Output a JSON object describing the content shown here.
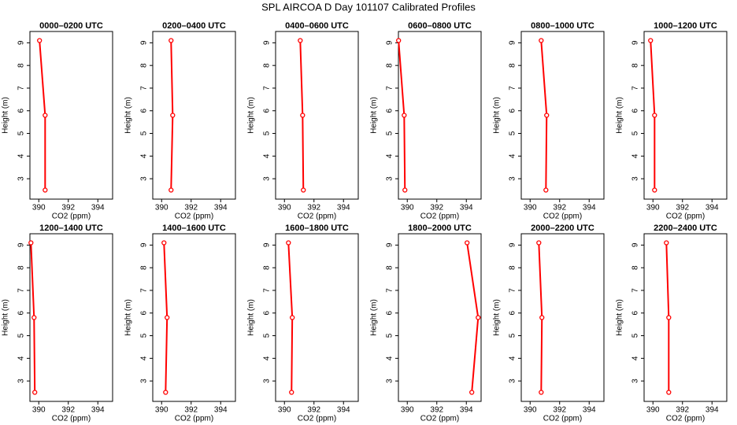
{
  "title": "SPL AIRCOA D  Day 101107  Calibrated Profiles",
  "chart_data": [
    {
      "type": "line",
      "title": "0000–0200 UTC",
      "xlabel": "CO2 (ppm)",
      "ylabel": "Height (m)",
      "color": "#ff0000",
      "x": [
        390.05,
        390.43,
        390.43
      ],
      "values": [
        9.1,
        5.8,
        2.5
      ],
      "xlim": [
        389.4,
        395
      ],
      "ylim": [
        2.1,
        9.5
      ],
      "xticks": [
        390,
        392,
        394
      ],
      "yticks": [
        3,
        4,
        5,
        6,
        7,
        8,
        9
      ]
    },
    {
      "type": "line",
      "title": "0200–0400 UTC",
      "xlabel": "CO2 (ppm)",
      "ylabel": "Height (m)",
      "color": "#ff0000",
      "x": [
        390.64,
        390.75,
        390.64
      ],
      "values": [
        9.1,
        5.8,
        2.5
      ],
      "xlim": [
        389.4,
        395
      ],
      "ylim": [
        2.1,
        9.5
      ],
      "xticks": [
        390,
        392,
        394
      ],
      "yticks": [
        3,
        4,
        5,
        6,
        7,
        8,
        9
      ]
    },
    {
      "type": "line",
      "title": "0400–0600 UTC",
      "xlabel": "CO2 (ppm)",
      "ylabel": "Height (m)",
      "color": "#ff0000",
      "x": [
        391.07,
        391.23,
        391.28
      ],
      "values": [
        9.1,
        5.8,
        2.5
      ],
      "xlim": [
        389.4,
        395
      ],
      "ylim": [
        2.1,
        9.5
      ],
      "xticks": [
        390,
        392,
        394
      ],
      "yticks": [
        3,
        4,
        5,
        6,
        7,
        8,
        9
      ]
    },
    {
      "type": "line",
      "title": "0600–0800 UTC",
      "xlabel": "CO2 (ppm)",
      "ylabel": "Height (m)",
      "color": "#ff0000",
      "x": [
        389.41,
        389.79,
        389.84
      ],
      "values": [
        9.1,
        5.8,
        2.5
      ],
      "xlim": [
        389.4,
        395
      ],
      "ylim": [
        2.1,
        9.5
      ],
      "xticks": [
        390,
        392,
        394
      ],
      "yticks": [
        3,
        4,
        5,
        6,
        7,
        8,
        9
      ]
    },
    {
      "type": "line",
      "title": "0800–1000 UTC",
      "xlabel": "CO2 (ppm)",
      "ylabel": "Height (m)",
      "color": "#ff0000",
      "x": [
        390.75,
        391.12,
        391.07
      ],
      "values": [
        9.1,
        5.8,
        2.5
      ],
      "xlim": [
        389.4,
        395
      ],
      "ylim": [
        2.1,
        9.5
      ],
      "xticks": [
        390,
        392,
        394
      ],
      "yticks": [
        3,
        4,
        5,
        6,
        7,
        8,
        9
      ]
    },
    {
      "type": "line",
      "title": "1000–1200 UTC",
      "xlabel": "CO2 (ppm)",
      "ylabel": "Height (m)",
      "color": "#ff0000",
      "x": [
        389.84,
        390.11,
        390.11
      ],
      "values": [
        9.1,
        5.8,
        2.5
      ],
      "xlim": [
        389.4,
        395
      ],
      "ylim": [
        2.1,
        9.5
      ],
      "xticks": [
        390,
        392,
        394
      ],
      "yticks": [
        3,
        4,
        5,
        6,
        7,
        8,
        9
      ]
    },
    {
      "type": "line",
      "title": "1200–1400 UTC",
      "xlabel": "CO2 (ppm)",
      "ylabel": "Height (m)",
      "color": "#ff0000",
      "x": [
        389.47,
        389.68,
        389.73
      ],
      "values": [
        9.1,
        5.8,
        2.5
      ],
      "xlim": [
        389.4,
        395
      ],
      "ylim": [
        2.1,
        9.5
      ],
      "xticks": [
        390,
        392,
        394
      ],
      "yticks": [
        3,
        4,
        5,
        6,
        7,
        8,
        9
      ]
    },
    {
      "type": "line",
      "title": "1400–1600 UTC",
      "xlabel": "CO2 (ppm)",
      "ylabel": "Height (m)",
      "color": "#ff0000",
      "x": [
        390.16,
        390.37,
        390.27
      ],
      "values": [
        9.1,
        5.8,
        2.5
      ],
      "xlim": [
        389.4,
        395
      ],
      "ylim": [
        2.1,
        9.5
      ],
      "xticks": [
        390,
        392,
        394
      ],
      "yticks": [
        3,
        4,
        5,
        6,
        7,
        8,
        9
      ]
    },
    {
      "type": "line",
      "title": "1600–1800 UTC",
      "xlabel": "CO2 (ppm)",
      "ylabel": "Height (m)",
      "color": "#ff0000",
      "x": [
        390.27,
        390.53,
        390.48
      ],
      "values": [
        9.1,
        5.8,
        2.5
      ],
      "xlim": [
        389.4,
        395
      ],
      "ylim": [
        2.1,
        9.5
      ],
      "xticks": [
        390,
        392,
        394
      ],
      "yticks": [
        3,
        4,
        5,
        6,
        7,
        8,
        9
      ]
    },
    {
      "type": "line",
      "title": "1800–2000 UTC",
      "xlabel": "CO2 (ppm)",
      "ylabel": "Height (m)",
      "color": "#ff0000",
      "x": [
        394.05,
        394.8,
        394.37
      ],
      "values": [
        9.1,
        5.8,
        2.5
      ],
      "xlim": [
        389.4,
        395
      ],
      "ylim": [
        2.1,
        9.5
      ],
      "xticks": [
        390,
        392,
        394
      ],
      "yticks": [
        3,
        4,
        5,
        6,
        7,
        8,
        9
      ]
    },
    {
      "type": "line",
      "title": "2000–2200 UTC",
      "xlabel": "CO2 (ppm)",
      "ylabel": "Height (m)",
      "color": "#ff0000",
      "x": [
        390.59,
        390.8,
        390.75
      ],
      "values": [
        9.1,
        5.8,
        2.5
      ],
      "xlim": [
        389.4,
        395
      ],
      "ylim": [
        2.1,
        9.5
      ],
      "xticks": [
        390,
        392,
        394
      ],
      "yticks": [
        3,
        4,
        5,
        6,
        7,
        8,
        9
      ]
    },
    {
      "type": "line",
      "title": "2200–2400 UTC",
      "xlabel": "CO2 (ppm)",
      "ylabel": "Height (m)",
      "color": "#ff0000",
      "x": [
        390.91,
        391.07,
        391.07
      ],
      "values": [
        9.1,
        5.8,
        2.5
      ],
      "xlim": [
        389.4,
        395
      ],
      "ylim": [
        2.1,
        9.5
      ],
      "xticks": [
        390,
        392,
        394
      ],
      "yticks": [
        3,
        4,
        5,
        6,
        7,
        8,
        9
      ]
    }
  ]
}
